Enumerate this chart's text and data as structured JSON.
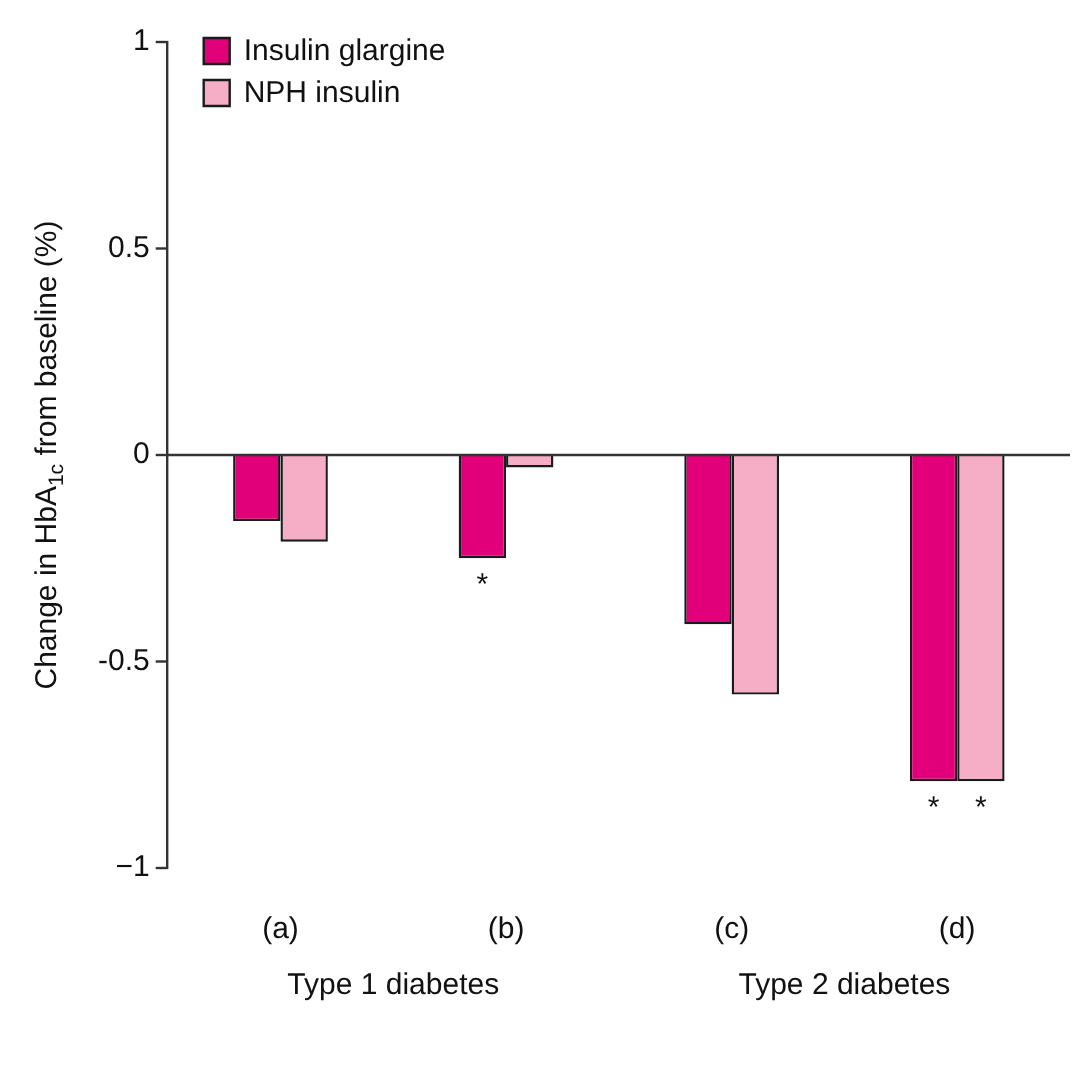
{
  "chart_data": {
    "type": "bar",
    "ylabel": "Change in HbA$_{1c}$ from baseline (%)",
    "categories": [
      "(a)",
      "(b)",
      "(c)",
      "(d)"
    ],
    "series": [
      {
        "name": "Insulin glargine",
        "color": "#e2007a",
        "values": [
          -0.16,
          -0.25,
          -0.41,
          -0.79
        ]
      },
      {
        "name": "NPH insulin",
        "color": "#f6adc6",
        "values": [
          -0.21,
          -0.03,
          -0.58,
          -0.79
        ]
      }
    ],
    "ylim": [
      -1,
      1
    ],
    "yticks": [
      {
        "value": -1,
        "label": "−1"
      },
      {
        "value": -0.5,
        "label": "-0.5"
      },
      0,
      0.5,
      1
    ],
    "ref_lines": [
      {
        "axis": "y",
        "value": 0,
        "color": "#333333"
      }
    ],
    "grid": false,
    "legend": "top left",
    "annotations": [
      {
        "text": "*",
        "x": "(b)",
        "y": -0.25
      },
      {
        "text": "*",
        "x": "(d)",
        "y": -0.79
      },
      {
        "text": "*",
        "x": "(d)",
        "y": -0.79
      },
      "Type 1 diabetes",
      "Type 2 diabetes"
    ]
  }
}
